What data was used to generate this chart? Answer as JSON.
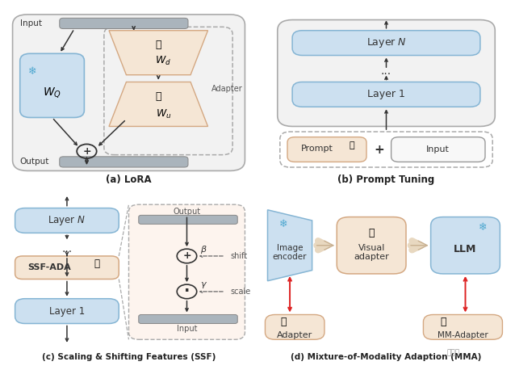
{
  "bg_color": "#ffffff",
  "panel_bg": "#f2f2f2",
  "box_blue": "#cce0f0",
  "box_peach": "#f5e6d5",
  "box_peach_border": "#d4a882",
  "box_blue_border": "#85b5d4",
  "bar_gray": "#aab4bc",
  "arrow_color": "#333333",
  "dashed_color": "#999999",
  "title_a": "(a) LoRA",
  "title_b": "(b) Prompt Tuning",
  "title_c": "(c) Scaling & Shifting Features (SSF)",
  "title_d": "(d) Mixture-of-Modality Adaption (MMA)",
  "watermark": "新智元"
}
